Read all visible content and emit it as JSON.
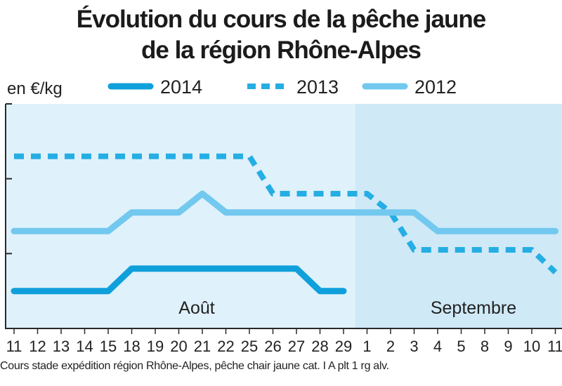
{
  "title": {
    "line1": "Évolution du cours de la pêche jaune",
    "line2": "de la région Rhône-Alpes"
  },
  "footnote": "Cours stade expédition région Rhône-Alpes, pêche chair jaune cat. I A plt 1 rg alv.",
  "chart_data": {
    "type": "line",
    "ylabel": "en €/kg",
    "legend_position": "top",
    "y_gridlines": false,
    "x": [
      "11",
      "12",
      "13",
      "14",
      "15",
      "18",
      "19",
      "20",
      "21",
      "22",
      "25",
      "26",
      "27",
      "28",
      "29",
      "1",
      "2",
      "3",
      "4",
      "5",
      "8",
      "9",
      "10",
      "11"
    ],
    "months": [
      {
        "label": "Août",
        "start": "11",
        "end": "29",
        "color": "#dff1fb"
      },
      {
        "label": "Septembre",
        "start": "1",
        "end": "11",
        "color": "#cfe9f7"
      }
    ],
    "series": [
      {
        "name": "2014",
        "style": "solid",
        "color": "#0fa0dc",
        "values": [
          0.5,
          0.5,
          0.5,
          0.5,
          0.5,
          0.8,
          0.8,
          0.8,
          0.8,
          0.8,
          0.8,
          0.8,
          0.8,
          0.5,
          0.5,
          null,
          null,
          null,
          null,
          null,
          null,
          null,
          null,
          null
        ]
      },
      {
        "name": "2013",
        "style": "dashed",
        "color": "#25aee3",
        "values": [
          2.3,
          2.3,
          2.3,
          2.3,
          2.3,
          2.3,
          2.3,
          2.3,
          2.3,
          2.3,
          2.3,
          1.8,
          1.8,
          1.8,
          1.8,
          1.8,
          1.55,
          1.05,
          1.05,
          1.05,
          1.05,
          1.05,
          1.05,
          0.75
        ]
      },
      {
        "name": "2012",
        "style": "solid",
        "color": "#72c8ef",
        "values": [
          1.3,
          1.3,
          1.3,
          1.3,
          1.3,
          1.55,
          1.55,
          1.55,
          1.8,
          1.55,
          1.55,
          1.55,
          1.55,
          1.55,
          1.55,
          1.55,
          1.55,
          1.55,
          1.3,
          1.3,
          1.3,
          1.3,
          1.3,
          1.3
        ]
      }
    ],
    "ylim": [
      0,
      3
    ]
  }
}
